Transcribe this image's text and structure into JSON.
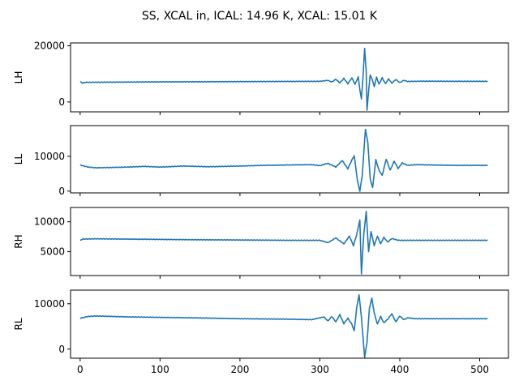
{
  "title": "SS, XCAL in, ICAL: 14.96 K, XCAL: 15.01 K",
  "colors": {
    "line": "#1f77b4",
    "axes": "#000000",
    "background": "#ffffff"
  },
  "chart_data": [
    {
      "type": "line",
      "ylabel": "LH",
      "xlim": [
        -12,
        536
      ],
      "ylim": [
        -3500,
        21000
      ],
      "yticks": [
        0,
        20000
      ],
      "xticks": [
        0,
        100,
        200,
        300,
        400,
        500
      ],
      "show_xticklabels": false,
      "series": [
        {
          "profile": {
            "x": [
              0,
              3,
              6,
              40,
              100,
              200,
              300,
              310,
              315,
              320,
              325,
              330,
              335,
              340,
              344,
              348,
              350,
              352,
              354,
              356,
              358,
              359,
              361,
              363,
              365,
              368,
              371,
              374,
              378,
              382,
              386,
              390,
              395,
              400,
              405,
              410,
              430,
              470,
              510
            ],
            "y": [
              7200,
              6700,
              7000,
              7050,
              7150,
              7250,
              7350,
              7700,
              7100,
              8100,
              6800,
              8400,
              6500,
              8600,
              6300,
              8900,
              4500,
              1000,
              9000,
              19000,
              11000,
              -3000,
              4000,
              9500,
              8500,
              5500,
              8800,
              6300,
              8600,
              6500,
              8200,
              6700,
              8000,
              6900,
              7700,
              7300,
              7400,
              7350,
              7350
            ]
          }
        }
      ]
    },
    {
      "type": "line",
      "ylabel": "LL",
      "xlim": [
        -12,
        536
      ],
      "ylim": [
        -500,
        18800
      ],
      "yticks": [
        0,
        10000
      ],
      "xticks": [
        0,
        100,
        200,
        300,
        400,
        500
      ],
      "show_xticklabels": false,
      "series": [
        {
          "profile": {
            "x": [
              0,
              10,
              20,
              40,
              60,
              80,
              100,
              130,
              160,
              200,
              230,
              260,
              290,
              300,
              310,
              320,
              328,
              335,
              340,
              343,
              347,
              350,
              353,
              357,
              360,
              363,
              366,
              370,
              374,
              378,
              383,
              388,
              393,
              398,
              403,
              410,
              420,
              440,
              470,
              510
            ],
            "y": [
              7500,
              6900,
              6700,
              6800,
              6900,
              7100,
              6900,
              7200,
              7000,
              7200,
              7400,
              7500,
              7600,
              7300,
              8000,
              6900,
              8800,
              6400,
              8900,
              10200,
              3000,
              0,
              4500,
              17800,
              14000,
              3500,
              1000,
              9000,
              6000,
              4500,
              9200,
              6000,
              8600,
              6500,
              8100,
              7400,
              7600,
              7500,
              7400,
              7400
            ]
          }
        }
      ]
    },
    {
      "type": "line",
      "ylabel": "RH",
      "xlim": [
        -12,
        536
      ],
      "ylim": [
        1000,
        12400
      ],
      "yticks": [
        5000,
        10000
      ],
      "xticks": [
        0,
        100,
        200,
        300,
        400,
        500
      ],
      "show_xticklabels": false,
      "series": [
        {
          "profile": {
            "x": [
              0,
              3,
              20,
              60,
              100,
              140,
              200,
              260,
              300,
              310,
              320,
              330,
              337,
              342,
              346,
              350,
              352,
              355,
              358,
              361,
              364,
              368,
              372,
              376,
              380,
              385,
              390,
              398,
              420,
              470,
              510
            ],
            "y": [
              6900,
              7100,
              7150,
              7100,
              7050,
              7000,
              6950,
              6900,
              6900,
              6500,
              7300,
              6300,
              7600,
              6000,
              7800,
              10300,
              1300,
              8000,
              11700,
              5000,
              8400,
              6000,
              7600,
              6300,
              7400,
              6600,
              7200,
              6900,
              6900,
              6900,
              6900
            ]
          }
        }
      ]
    },
    {
      "type": "line",
      "ylabel": "RL",
      "xlim": [
        -12,
        536
      ],
      "ylim": [
        -2000,
        13000
      ],
      "yticks": [
        0,
        10000
      ],
      "xticks": [
        0,
        100,
        200,
        300,
        400,
        500
      ],
      "show_xticklabels": true,
      "series": [
        {
          "profile": {
            "x": [
              0,
              10,
              20,
              40,
              60,
              100,
              140,
              200,
              260,
              290,
              305,
              310,
              315,
              320,
              325,
              330,
              335,
              340,
              343,
              346,
              349,
              352,
              356,
              359,
              362,
              365,
              368,
              372,
              376,
              380,
              385,
              390,
              395,
              400,
              405,
              410,
              420,
              450,
              510
            ],
            "y": [
              6800,
              7200,
              7300,
              7200,
              7100,
              7000,
              6900,
              6700,
              6600,
              6500,
              7100,
              6200,
              7200,
              6000,
              7600,
              5600,
              6800,
              5500,
              4000,
              9000,
              12000,
              7000,
              -1800,
              1500,
              9000,
              11200,
              8000,
              5500,
              7200,
              5800,
              6600,
              7800,
              6000,
              7300,
              6500,
              6900,
              6700,
              6700,
              6700
            ]
          }
        }
      ]
    }
  ]
}
